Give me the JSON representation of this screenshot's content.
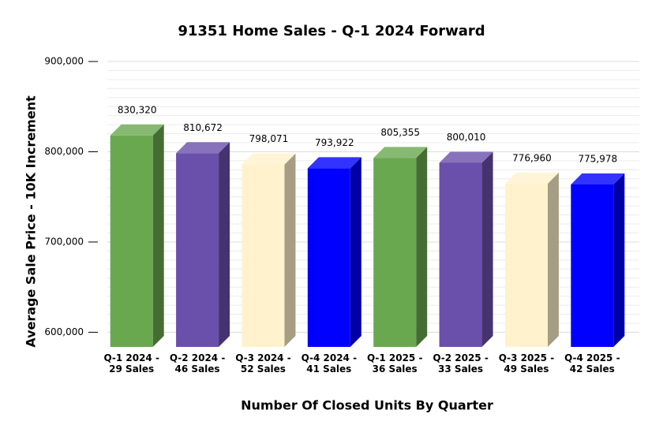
{
  "chart_data": {
    "type": "bar3d",
    "title": "91351 Home Sales - Q-1 2024 Forward",
    "xlabel": "Number Of Closed Units By Quarter",
    "ylabel": "Average Sale Price - 10K Increment",
    "categories": [
      "Q-1 2024 - 29 Sales",
      "Q-2 2024 - 46 Sales",
      "Q-3 2024 - 52 Sales",
      "Q-4 2024 - 41 Sales",
      "Q-1 2025 - 36 Sales",
      "Q-2 2025 - 33 Sales",
      "Q-3 2025 - 49 Sales",
      "Q-4 2025 - 42 Sales"
    ],
    "values": [
      830320,
      810672,
      798071,
      793922,
      805355,
      800010,
      776960,
      775978
    ],
    "value_labels": [
      "830,320",
      "810,672",
      "798,071",
      "793,922",
      "805,355",
      "800,010",
      "776,960",
      "775,978"
    ],
    "colors": [
      "#6aa84f",
      "#6a4fab",
      "#fff2cc",
      "#0000ff",
      "#6aa84f",
      "#6a4fab",
      "#fff2cc",
      "#0000ff"
    ],
    "ylim": [
      596000,
      900000
    ],
    "yticks": [
      {
        "value": 600000,
        "label": "600,000"
      },
      {
        "value": 700000,
        "label": "700,000"
      },
      {
        "value": 800000,
        "label": "800,000"
      },
      {
        "value": 900000,
        "label": "900,000"
      }
    ],
    "minor_yticks": [
      610000,
      620000,
      630000,
      640000,
      650000,
      660000,
      670000,
      680000,
      690000,
      710000,
      720000,
      730000,
      740000,
      750000,
      760000,
      770000,
      780000,
      790000,
      810000,
      820000,
      830000,
      840000,
      850000,
      860000,
      870000,
      880000,
      890000
    ],
    "grid": true
  }
}
